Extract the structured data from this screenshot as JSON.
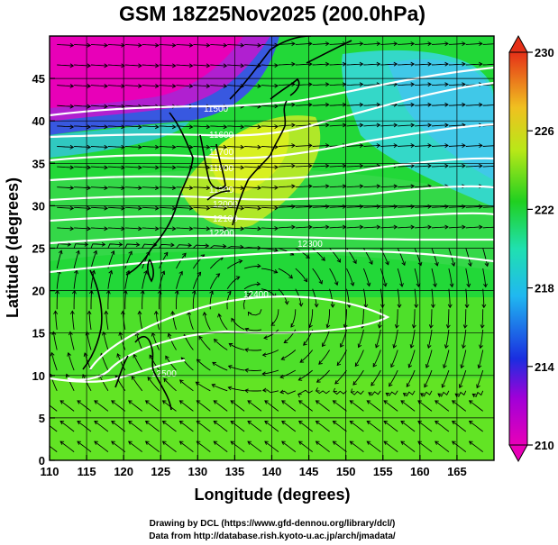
{
  "title": "GSM 18Z25Nov2025 (200.0hPa)",
  "xlabel": "Longitude (degrees)",
  "ylabel": "Latitude  (degrees)",
  "x_ticks": [
    "110",
    "115",
    "120",
    "125",
    "130",
    "135",
    "140",
    "145",
    "150",
    "155",
    "160",
    "165"
  ],
  "y_ticks": [
    "0",
    "5",
    "10",
    "15",
    "20",
    "25",
    "30",
    "35",
    "40",
    "45"
  ],
  "colorbar": {
    "ticks": [
      "230",
      "226",
      "222",
      "218",
      "214",
      "210"
    ],
    "min": 210,
    "max": 230
  },
  "contour_labels": [
    "11500",
    "11600",
    "11700",
    "11800",
    "11900",
    "12000",
    "12100",
    "12200",
    "12300",
    "12400",
    "12500"
  ],
  "credits": {
    "line1": "Drawing by DCL (https://www.gfd-dennou.org/library/dcl/)",
    "line2": "Data from http://database.rish.kyoto-u.ac.jp/arch/jmadata/"
  },
  "colors": {
    "magenta": "#e800b8",
    "blue": "#1a2ee0",
    "cyan": "#2fd0e6",
    "green": "#20d020",
    "yellow": "#d8f020",
    "red": "#e53018"
  }
}
